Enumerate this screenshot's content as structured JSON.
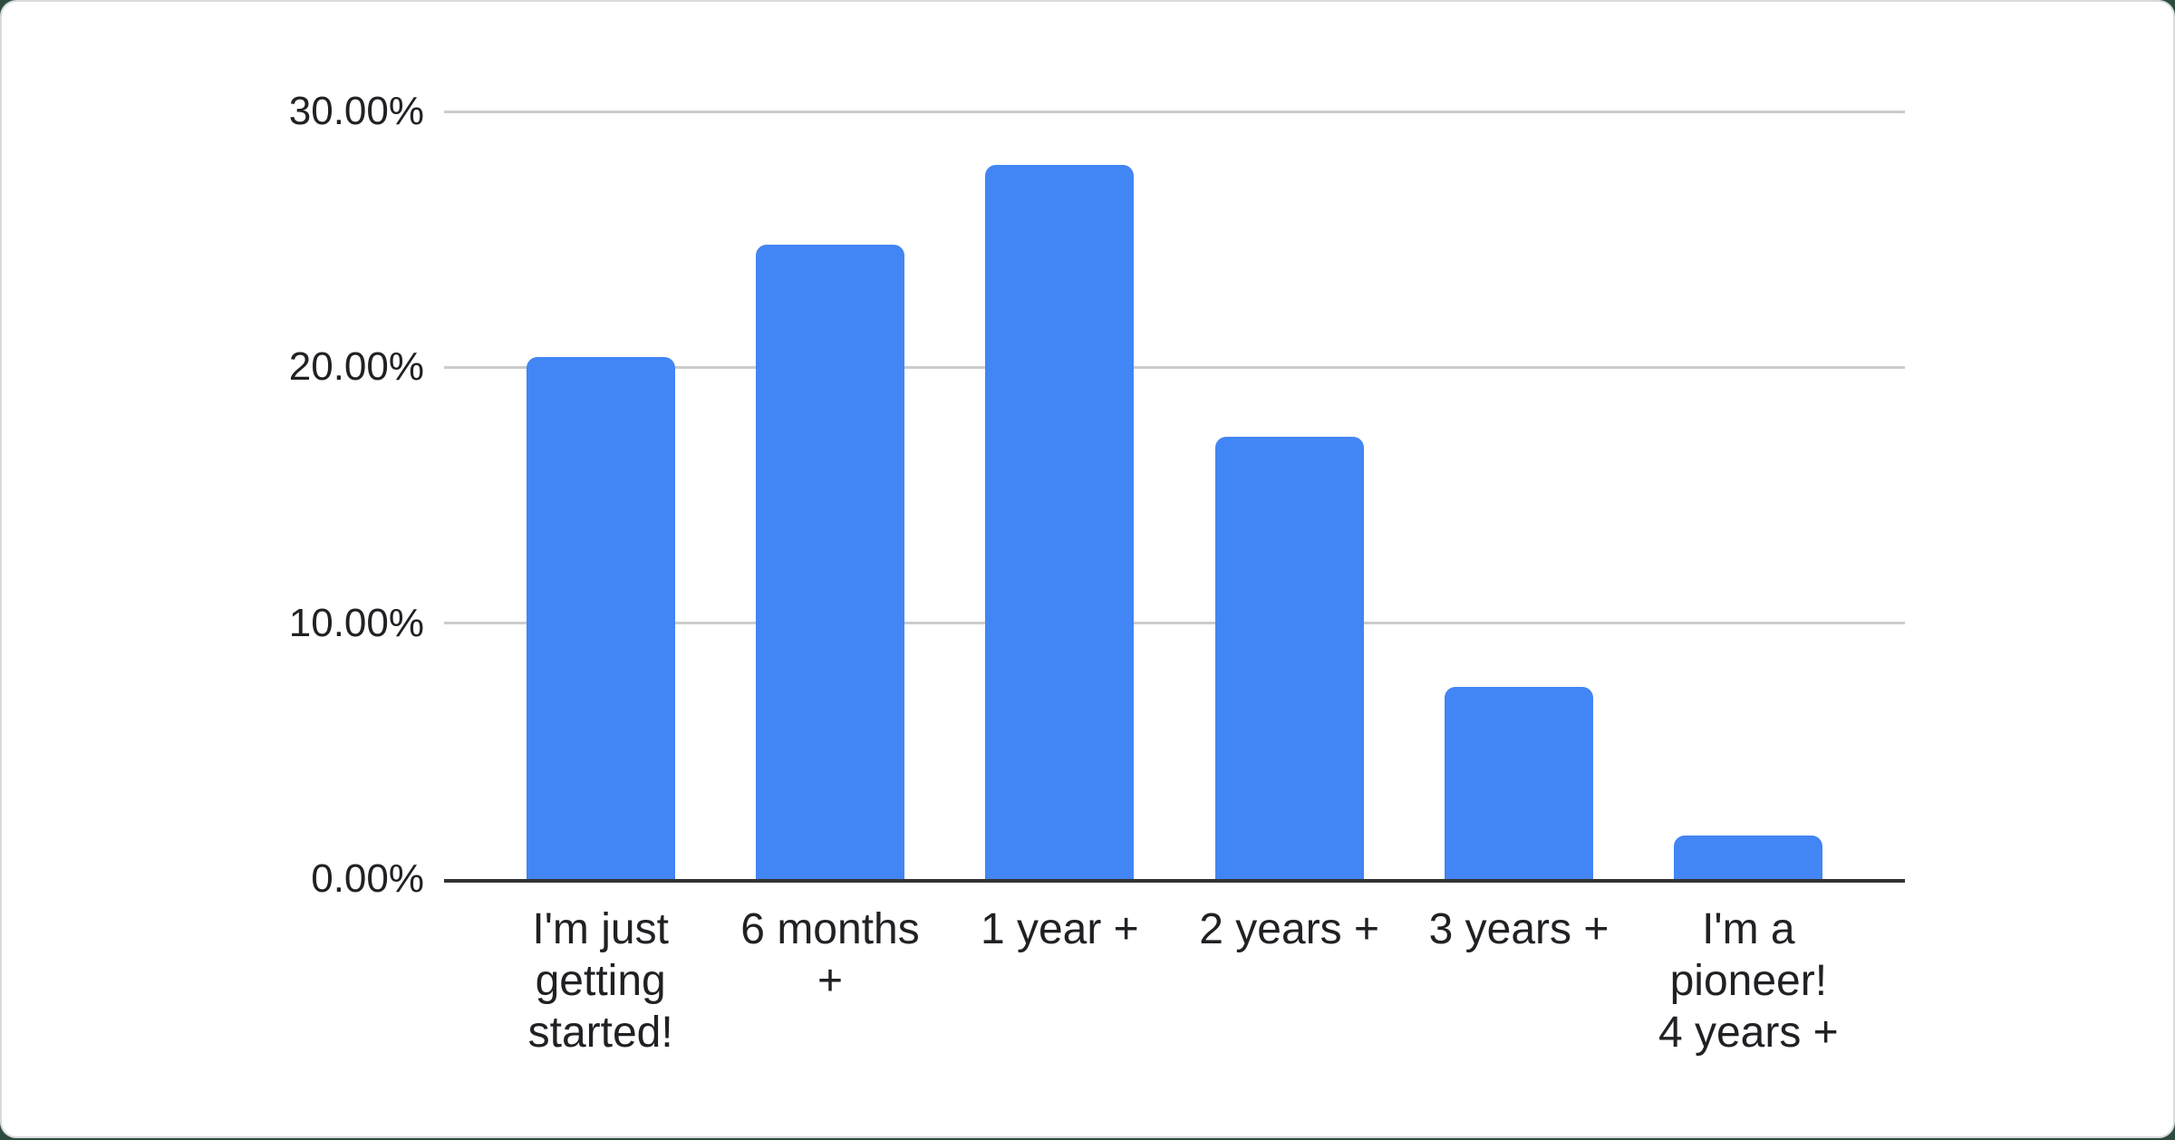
{
  "chart_data": {
    "type": "bar",
    "categories": [
      "I'm just getting started!",
      "6 months +",
      "1 year +",
      "2 years +",
      "3 years +",
      "I'm a pioneer! 4 years +"
    ],
    "category_lines": [
      [
        "I'm just",
        "getting",
        "started!"
      ],
      [
        "6 months",
        "+"
      ],
      [
        "1 year +"
      ],
      [
        "2 years +"
      ],
      [
        "3 years +"
      ],
      [
        "I'm a",
        "pioneer!",
        "4 years +"
      ]
    ],
    "values": [
      20.4,
      24.8,
      27.9,
      17.3,
      7.5,
      1.7
    ],
    "title": "",
    "xlabel": "",
    "ylabel": "",
    "ylim": [
      0,
      30
    ],
    "yticks": [
      {
        "value": 0,
        "label": "0.00%"
      },
      {
        "value": 10,
        "label": "10.00%"
      },
      {
        "value": 20,
        "label": "20.00%"
      },
      {
        "value": 30,
        "label": "30.00%"
      }
    ],
    "grid": true,
    "legend": "none"
  },
  "colors": {
    "bar": "#4285f4",
    "gridline": "#cccccc",
    "axis_line": "#333333",
    "text": "#202124",
    "card_background": "#ffffff",
    "card_border": "#d8dade",
    "page_background": "#2d4c3d"
  }
}
